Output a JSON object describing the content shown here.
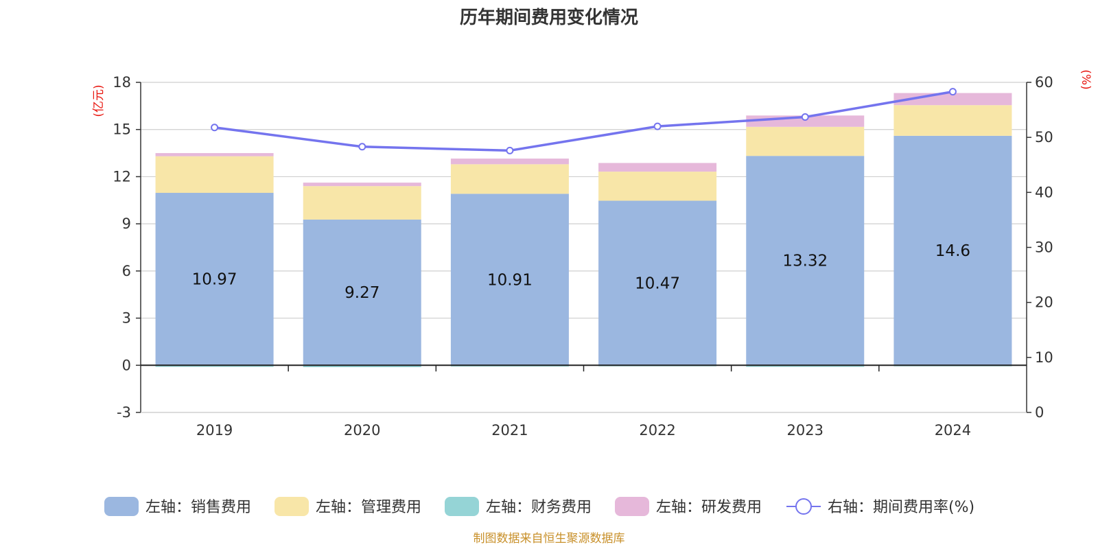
{
  "chart_data": {
    "type": "bar",
    "stacked": true,
    "title": "历年期间费用变化情况",
    "categories": [
      "2019",
      "2020",
      "2021",
      "2022",
      "2023",
      "2024"
    ],
    "left_axis": {
      "unit": "(亿元)",
      "ylim": [
        -3,
        18
      ],
      "ticks": [
        "18",
        "15",
        "12",
        "9",
        "6",
        "3",
        "0",
        "-3"
      ]
    },
    "right_axis": {
      "unit": "(%)",
      "ylim": [
        0,
        60
      ],
      "ticks": [
        "60",
        "50",
        "40",
        "30",
        "20",
        "10",
        "0"
      ]
    },
    "grid": true,
    "series": [
      {
        "name": "左轴：销售费用",
        "type": "bar",
        "axis": "left",
        "color": "#9bb7e0",
        "values": [
          10.97,
          9.27,
          10.91,
          10.47,
          13.32,
          14.6
        ],
        "labels": [
          "10.97",
          "9.27",
          "10.91",
          "10.47",
          "13.32",
          "14.6"
        ]
      },
      {
        "name": "左轴：管理费用",
        "type": "bar",
        "axis": "left",
        "color": "#f8e6a8",
        "values": [
          2.33,
          2.13,
          1.88,
          1.85,
          1.85,
          1.95
        ]
      },
      {
        "name": "左轴：财务费用",
        "type": "bar",
        "axis": "left",
        "color": "#95d4d6",
        "values": [
          -0.1,
          -0.12,
          -0.08,
          -0.05,
          -0.1,
          -0.02
        ]
      },
      {
        "name": "左轴：研发费用",
        "type": "bar",
        "axis": "left",
        "color": "#e6b8da",
        "values": [
          0.2,
          0.22,
          0.36,
          0.55,
          0.72,
          0.77
        ]
      },
      {
        "name": "右轴：期间费用率(%)",
        "type": "line",
        "axis": "right",
        "color": "#7474ee",
        "values": [
          51.8,
          48.3,
          47.6,
          52.0,
          53.7,
          58.3
        ]
      }
    ],
    "legend_position": "bottom"
  },
  "source": "制图数据来自恒生聚源数据库"
}
